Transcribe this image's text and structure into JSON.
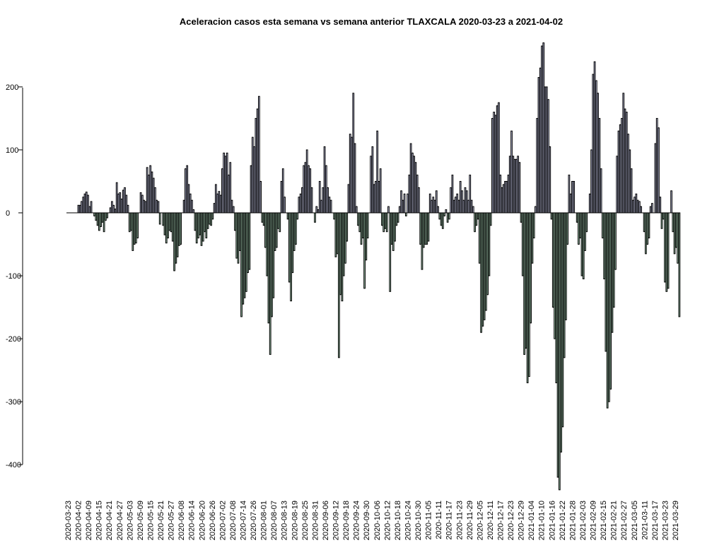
{
  "chart_data": {
    "type": "bar",
    "title": "Aceleracion casos esta semana vs semana anterior TLAXCALA 2020-03-23 a 2021-04-02",
    "xlabel": "",
    "ylabel": "",
    "ylim": [
      -440,
      270
    ],
    "yticks": [
      200,
      100,
      0,
      -100,
      -200,
      -300,
      -400
    ],
    "start_date": "2020-03-23",
    "x_tick_labels": [
      "2020-03-23",
      "2020-04-02",
      "2020-04-09",
      "2020-04-15",
      "2020-04-21",
      "2020-04-27",
      "2020-05-03",
      "2020-05-09",
      "2020-05-15",
      "2020-05-21",
      "2020-05-27",
      "2020-06-08",
      "2020-06-14",
      "2020-06-20",
      "2020-06-26",
      "2020-07-02",
      "2020-07-08",
      "2020-07-14",
      "2020-07-26",
      "2020-08-01",
      "2020-08-07",
      "2020-08-13",
      "2020-08-19",
      "2020-08-25",
      "2020-08-31",
      "2020-09-06",
      "2020-09-12",
      "2020-09-18",
      "2020-09-24",
      "2020-09-30",
      "2020-10-06",
      "2020-10-12",
      "2020-10-18",
      "2020-10-24",
      "2020-10-30",
      "2020-11-05",
      "2020-11-11",
      "2020-11-17",
      "2020-11-23",
      "2020-11-29",
      "2020-12-05",
      "2020-12-11",
      "2020-12-17",
      "2020-12-23",
      "2020-12-29",
      "2021-01-04",
      "2021-01-10",
      "2021-01-16",
      "2021-01-22",
      "2021-01-28",
      "2021-02-03",
      "2021-02-09",
      "2021-02-15",
      "2021-02-21",
      "2021-02-27",
      "2021-03-05",
      "2021-03-11",
      "2021-03-17",
      "2021-03-23",
      "2021-03-29"
    ],
    "positive_color": "#c5c8e6",
    "negative_color": "#a6cfb4",
    "values": [
      0,
      0,
      0,
      0,
      0,
      0,
      0,
      12,
      12,
      18,
      25,
      30,
      33,
      28,
      10,
      18,
      0,
      -5,
      -12,
      -20,
      -28,
      -22,
      -15,
      -30,
      -12,
      -8,
      0,
      8,
      18,
      12,
      6,
      48,
      30,
      32,
      22,
      36,
      40,
      28,
      12,
      -30,
      -28,
      -60,
      -50,
      -48,
      -40,
      0,
      32,
      28,
      20,
      18,
      72,
      60,
      75,
      65,
      55,
      40,
      20,
      18,
      -18,
      0,
      -20,
      -35,
      -48,
      -40,
      -28,
      -30,
      -45,
      -92,
      -80,
      -70,
      -52,
      -50,
      0,
      20,
      70,
      75,
      45,
      30,
      20,
      5,
      -28,
      -48,
      -40,
      -35,
      -52,
      -45,
      -30,
      -40,
      -25,
      -18,
      -20,
      -10,
      15,
      45,
      30,
      34,
      28,
      70,
      95,
      90,
      95,
      60,
      80,
      20,
      10,
      -28,
      -72,
      -80,
      -60,
      -165,
      -145,
      -135,
      -125,
      -95,
      -90,
      75,
      120,
      105,
      150,
      165,
      185,
      50,
      -15,
      -20,
      -55,
      -100,
      -175,
      -225,
      -165,
      -135,
      -60,
      -55,
      -25,
      -30,
      50,
      70,
      25,
      0,
      -10,
      -110,
      -140,
      -95,
      -60,
      -50,
      -10,
      25,
      30,
      40,
      75,
      80,
      100,
      75,
      70,
      40,
      0,
      -15,
      10,
      5,
      50,
      20,
      40,
      105,
      75,
      40,
      25,
      20,
      0,
      -10,
      -70,
      -65,
      -230,
      -130,
      -140,
      -100,
      -80,
      -45,
      45,
      125,
      120,
      190,
      110,
      10,
      -20,
      -30,
      -50,
      -40,
      -120,
      -75,
      -40,
      0,
      90,
      105,
      45,
      50,
      130,
      50,
      70,
      -20,
      -30,
      -25,
      -30,
      10,
      -125,
      -50,
      -60,
      -45,
      -20,
      -15,
      10,
      35,
      20,
      30,
      -5,
      30,
      60,
      110,
      95,
      90,
      80,
      60,
      40,
      -50,
      -90,
      -55,
      -50,
      -50,
      -45,
      30,
      20,
      25,
      20,
      35,
      10,
      -10,
      -20,
      -25,
      -5,
      5,
      -15,
      -10,
      40,
      60,
      20,
      25,
      30,
      20,
      50,
      35,
      20,
      40,
      35,
      20,
      60,
      20,
      10,
      -30,
      -20,
      -10,
      -80,
      -190,
      -180,
      -170,
      -155,
      -130,
      -100,
      -20,
      150,
      160,
      155,
      170,
      175,
      60,
      40,
      45,
      50,
      50,
      60,
      90,
      130,
      90,
      85,
      85,
      90,
      80,
      -15,
      -100,
      -225,
      -215,
      -270,
      -260,
      -175,
      -80,
      -40,
      10,
      150,
      215,
      230,
      265,
      270,
      200,
      200,
      180,
      105,
      -10,
      -150,
      -200,
      -270,
      -420,
      -440,
      -380,
      -340,
      -230,
      -170,
      -50,
      60,
      30,
      50,
      50,
      0,
      -15,
      -50,
      -40,
      -100,
      -105,
      -60,
      -30,
      0,
      30,
      100,
      220,
      240,
      210,
      190,
      150,
      70,
      -40,
      -105,
      -220,
      -310,
      -300,
      -280,
      -190,
      -150,
      -90,
      90,
      130,
      140,
      150,
      190,
      165,
      160,
      125,
      100,
      70,
      20,
      25,
      30,
      20,
      18,
      10,
      0,
      -30,
      -65,
      -50,
      -40,
      10,
      15,
      0,
      110,
      150,
      135,
      25,
      -25,
      -10,
      -110,
      -125,
      -120,
      0,
      35,
      -30,
      -65,
      -55,
      -80,
      -165
    ]
  }
}
